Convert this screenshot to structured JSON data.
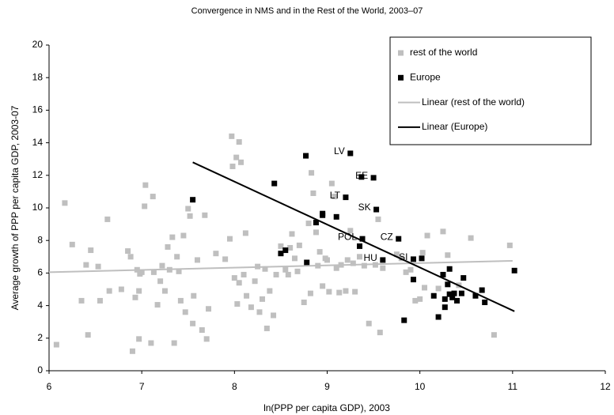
{
  "chart_data": {
    "type": "scatter",
    "title": "Convergence in NMS and in the Rest of the World, 2003–07",
    "x_label": "ln(PPP per capita GDP), 2003",
    "y_label": "Average growth of PPP per capita GDP, 2003-07",
    "xlim": [
      6,
      12
    ],
    "xticks": [
      6,
      7,
      8,
      9,
      10,
      11,
      12
    ],
    "ylim": [
      0,
      20
    ],
    "yticks": [
      0,
      2,
      4,
      6,
      8,
      10,
      12,
      14,
      16,
      18,
      20
    ],
    "grid": false,
    "legend": "upper right",
    "series": [
      {
        "name": "rest of the world",
        "kind": "scatter",
        "color": "#bfbfbf",
        "x": [
          6.08,
          6.17,
          6.25,
          6.35,
          6.4,
          6.42,
          6.45,
          6.53,
          6.55,
          6.63,
          6.65,
          6.78,
          6.85,
          6.88,
          6.9,
          6.93,
          6.95,
          6.97,
          6.97,
          6.98,
          7,
          7.03,
          7.04,
          7.1,
          7.12,
          7.13,
          7.17,
          7.2,
          7.22,
          7.25,
          7.28,
          7.3,
          7.33,
          7.35,
          7.38,
          7.4,
          7.42,
          7.45,
          7.47,
          7.5,
          7.52,
          7.55,
          7.56,
          7.6,
          7.65,
          7.68,
          7.7,
          7.72,
          7.8,
          7.9,
          7.95,
          7.97,
          7.98,
          8,
          8.02,
          8.03,
          8.05,
          8.05,
          8.07,
          8.1,
          8.12,
          8.13,
          8.18,
          8.22,
          8.25,
          8.27,
          8.3,
          8.33,
          8.35,
          8.38,
          8.42,
          8.45,
          8.5,
          8.55,
          8.58,
          8.6,
          8.62,
          8.65,
          8.68,
          8.7,
          8.75,
          8.8,
          8.82,
          8.83,
          8.85,
          8.88,
          8.9,
          8.92,
          8.95,
          8.98,
          9,
          9.02,
          9.05,
          9.08,
          9.1,
          9.13,
          9.15,
          9.2,
          9.22,
          9.25,
          9.28,
          9.3,
          9.35,
          9.4,
          9.45,
          9.52,
          9.55,
          9.57,
          9.6,
          9.75,
          9.8,
          9.85,
          9.9,
          9.95,
          10,
          10.03,
          10.05,
          10.08,
          10.25,
          10.2,
          10.3,
          10.42,
          10.55,
          10.8,
          10.97
        ],
        "values": [
          1.6,
          10.3,
          7.75,
          4.3,
          6.5,
          2.2,
          7.4,
          6.4,
          4.3,
          9.3,
          4.9,
          5,
          7.35,
          7,
          1.2,
          4.5,
          6.2,
          4.9,
          1.95,
          5.95,
          6.05,
          10.1,
          11.4,
          1.7,
          10.7,
          6.05,
          4.05,
          5.5,
          6.45,
          4.9,
          7.6,
          6.2,
          8.2,
          1.7,
          7,
          6.1,
          4.3,
          8.3,
          3.6,
          9.95,
          9.5,
          2.9,
          4.6,
          6.8,
          2.5,
          9.55,
          1.95,
          3.8,
          7.2,
          6.85,
          8.1,
          14.4,
          12.55,
          5.7,
          13.1,
          4.1,
          14.05,
          5.4,
          12.8,
          5.9,
          8.45,
          4.6,
          3.9,
          5.5,
          6.4,
          3.6,
          4.4,
          6.25,
          2.6,
          4.9,
          3.4,
          5.9,
          7.65,
          6.2,
          5.9,
          7.55,
          8.4,
          6.9,
          6.1,
          7.7,
          4.2,
          9.05,
          4.75,
          12.15,
          10.9,
          8.5,
          6.45,
          7.3,
          5.2,
          6.9,
          6.8,
          4.85,
          11.5,
          10.7,
          6.3,
          4.8,
          6.5,
          4.9,
          6.8,
          8.6,
          6.6,
          4.85,
          7,
          6.45,
          2.9,
          6.5,
          9.3,
          2.35,
          6.3,
          7.15,
          6.9,
          6.05,
          6.2,
          4.3,
          4.4,
          7.25,
          5.1,
          8.3,
          8.55,
          5.05,
          7.1,
          5.25,
          8.15,
          2.2,
          7.7
        ]
      },
      {
        "name": "Europe",
        "kind": "scatter",
        "color": "#000000",
        "x": [
          7.55,
          8.43,
          8.77,
          9.25,
          9.37,
          9.5,
          9.2,
          8.95,
          8.95,
          9.1,
          8.88,
          9.53,
          9.77,
          9.38,
          9.35,
          8.5,
          8.55,
          8.78,
          9.6,
          9.93,
          10.02,
          9.93,
          9.83,
          10.15,
          10.2,
          10.25,
          10.27,
          10.27,
          10.3,
          10.32,
          10.32,
          10.35,
          10.37,
          10.4,
          10.45,
          10.47,
          10.6,
          10.67,
          10.7,
          11.02
        ],
        "values": [
          10.5,
          11.5,
          13.2,
          13.35,
          11.9,
          11.85,
          10.65,
          9.65,
          9.55,
          9.45,
          9.1,
          9.9,
          8.1,
          8.1,
          7.65,
          7.2,
          7.4,
          6.65,
          6.8,
          6.85,
          6.9,
          5.6,
          3.1,
          4.6,
          3.3,
          5.9,
          4.4,
          3.9,
          5.3,
          6.25,
          4.7,
          4.5,
          4.75,
          4.3,
          4.75,
          5.7,
          4.6,
          4.95,
          4.2,
          6.15
        ]
      },
      {
        "name": "Linear (rest of the world)",
        "kind": "line",
        "color": "#bfbfbf",
        "x": [
          6,
          11
        ],
        "values": [
          6.05,
          6.75
        ]
      },
      {
        "name": "Linear (Europe)",
        "kind": "line",
        "color": "#000000",
        "x": [
          7.55,
          11.02
        ],
        "values": [
          12.8,
          3.65
        ]
      }
    ],
    "annotations": [
      {
        "text": "LV",
        "x": 9.25,
        "y": 13.35
      },
      {
        "text": "EE",
        "x": 9.5,
        "y": 11.85
      },
      {
        "text": "LT",
        "x": 9.2,
        "y": 10.65
      },
      {
        "text": "SK",
        "x": 9.53,
        "y": 9.9
      },
      {
        "text": "CZ",
        "x": 9.77,
        "y": 8.1
      },
      {
        "text": "POL",
        "x": 9.38,
        "y": 8.1
      },
      {
        "text": "HU",
        "x": 9.6,
        "y": 6.8
      },
      {
        "text": "SI",
        "x": 9.93,
        "y": 6.85
      }
    ]
  }
}
